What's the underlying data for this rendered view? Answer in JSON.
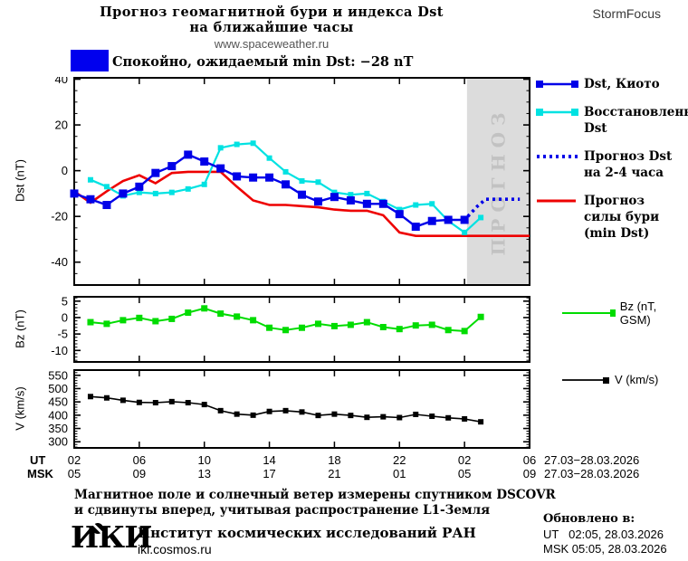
{
  "header": {
    "title_line1": "Прогноз геомагнитной бури и индекса Dst",
    "title_line2": "на ближайшие часы",
    "url": "www.spaceweather.ru",
    "brand": "StormFocus"
  },
  "status_banner": {
    "text": "Спокойно, ожидаемый min Dst: −28 nT",
    "swatch_color": "#0000ee"
  },
  "chart_data": [
    {
      "type": "line",
      "ylabel": "Dst (nT)",
      "x_axis_note": "hours UT, 27.03–28.03.2026",
      "xlim_hours": [
        2,
        30
      ],
      "x_major_ticks_hours": [
        2,
        6,
        10,
        14,
        18,
        22,
        26,
        30
      ],
      "ylim": [
        41,
        -50
      ],
      "yticks": [
        40,
        20,
        0,
        -20,
        -40
      ],
      "y_minor_step": 5,
      "forecast_region": {
        "start_hour": 26.15,
        "end_hour": 30,
        "label": "ПРОГНОЗ",
        "fill": "#dcdcdc",
        "label_color": "#c2c2c2"
      },
      "series": [
        {
          "name": "Прогноз силы бури (min Dst)",
          "color": "#ee0000",
          "marker": "none",
          "width": 2.6,
          "x": [
            2,
            3,
            4,
            5,
            6,
            7,
            8,
            9,
            10,
            11,
            12,
            13,
            14,
            15,
            16,
            17,
            18,
            19,
            20,
            21,
            22,
            23,
            24,
            25,
            26,
            27,
            28,
            29,
            30
          ],
          "y": [
            -9,
            -14,
            -9,
            -4.5,
            -2,
            -5.5,
            -1,
            -0.5,
            -0.5,
            -0.5,
            -7,
            -13,
            -15,
            -15,
            -15.5,
            -16,
            -17,
            -17.5,
            -17.5,
            -19.5,
            -27,
            -28.5,
            -28.5,
            -28.5,
            -28.5,
            -28.5,
            -28.5,
            -28.5,
            -28.5
          ]
        },
        {
          "name": "Восстановленный Dst",
          "color": "#00e2e2",
          "marker": "square",
          "marker_size": 6,
          "width": 2.2,
          "x": [
            3,
            4,
            5,
            6,
            7,
            8,
            9,
            10,
            11,
            12,
            13,
            14,
            15,
            16,
            17,
            18,
            19,
            20,
            21,
            22,
            23,
            24,
            25,
            26,
            27
          ],
          "y": [
            -4,
            -7,
            -11,
            -9.5,
            -10,
            -9.5,
            -8,
            -6,
            10,
            11.5,
            12,
            5.5,
            -0.5,
            -4.5,
            -5,
            -9.5,
            -10.5,
            -10,
            -13.5,
            -17,
            -15,
            -14.5,
            -22,
            -27,
            -20.5
          ]
        },
        {
          "name": "Dst, Киото",
          "color": "#0000e8",
          "marker": "square",
          "marker_size": 9,
          "width": 2.4,
          "x": [
            2,
            3,
            4,
            5,
            6,
            7,
            8,
            9,
            10,
            11,
            12,
            13,
            14,
            15,
            16,
            17,
            18,
            19,
            20,
            21,
            22,
            23,
            24,
            25,
            26
          ],
          "y": [
            -10,
            -12.5,
            -15,
            -10,
            -7,
            -1,
            2,
            7,
            4,
            1,
            -2.5,
            -3,
            -3,
            -6,
            -10.5,
            -13.5,
            -11.5,
            -13,
            -14.5,
            -14.5,
            -19,
            -24.5,
            -22,
            -21.5,
            -21.5
          ]
        },
        {
          "name": "Прогноз Dst на 2-4 часа",
          "color": "#0000e8",
          "marker": "none",
          "width": 3.6,
          "dashed": true,
          "x": [
            26.2,
            26.8,
            27.3,
            29.4
          ],
          "y": [
            -20,
            -15.5,
            -12.5,
            -12.5
          ]
        }
      ],
      "legend": [
        {
          "swatch": "line-squares",
          "color": "#0000e8",
          "label": "Dst, Киото"
        },
        {
          "swatch": "line-squares",
          "color": "#00e2e2",
          "label": "Восстановленный Dst"
        },
        {
          "swatch": "dotted-line",
          "color": "#0000e8",
          "label": "Прогноз Dst на 2-4 часа"
        },
        {
          "swatch": "line",
          "color": "#ee0000",
          "label": "Прогноз силы бури (min Dst)"
        }
      ]
    },
    {
      "type": "line",
      "ylabel": "Bz (nT)",
      "xlim_hours": [
        2,
        30
      ],
      "x_major_ticks_hours": [
        2,
        6,
        10,
        14,
        18,
        22,
        26,
        30
      ],
      "ylim": [
        6.6,
        -13.5
      ],
      "yticks": [
        5,
        0,
        -5,
        -10
      ],
      "y_minor_step": 1,
      "series": [
        {
          "name": "Bz (nT, GSM)",
          "color": "#00dc00",
          "marker": "square",
          "marker_size": 7,
          "width": 2,
          "x": [
            3,
            4,
            5,
            6,
            7,
            8,
            9,
            10,
            11,
            12,
            13,
            14,
            15,
            16,
            17,
            18,
            19,
            20,
            21,
            22,
            23,
            24,
            25,
            26,
            27
          ],
          "y": [
            -1.4,
            -1.9,
            -0.8,
            -0.1,
            -1.1,
            -0.4,
            1.5,
            2.8,
            1.2,
            0.3,
            -0.8,
            -3.1,
            -3.8,
            -3.1,
            -1.9,
            -2.6,
            -2.2,
            -1.4,
            -2.9,
            -3.5,
            -2.4,
            -2.2,
            -3.8,
            -4.1,
            0.2
          ]
        }
      ],
      "legend": [
        {
          "swatch": "line-square-end",
          "color": "#00dc00",
          "label": "Bz (nT, GSM)"
        }
      ]
    },
    {
      "type": "line",
      "ylabel": "V (km/s)",
      "xlim_hours": [
        2,
        30
      ],
      "x_major_ticks_hours": [
        2,
        6,
        10,
        14,
        18,
        22,
        26,
        30
      ],
      "ylim": [
        573,
        277
      ],
      "yticks": [
        550,
        500,
        450,
        400,
        350,
        300
      ],
      "y_minor_step": 10,
      "series": [
        {
          "name": "V (km/s)",
          "color": "#000000",
          "marker": "square",
          "marker_size": 6,
          "width": 1.6,
          "x": [
            3,
            4,
            5,
            6,
            7,
            8,
            9,
            10,
            11,
            12,
            13,
            14,
            15,
            16,
            17,
            18,
            19,
            20,
            21,
            22,
            23,
            24,
            25,
            26,
            27
          ],
          "y": [
            470,
            465,
            456,
            448,
            447,
            451,
            447,
            440,
            417,
            404,
            400,
            414,
            417,
            412,
            399,
            404,
            399,
            392,
            394,
            391,
            403,
            396,
            390,
            386,
            375
          ]
        }
      ],
      "legend": [
        {
          "swatch": "line-square-end",
          "color": "#000000",
          "label": "V (km/s)"
        }
      ]
    }
  ],
  "xaxis": {
    "ut_label": "UT",
    "msk_label": "MSK",
    "ut_ticks": [
      "02",
      "06",
      "10",
      "14",
      "18",
      "22",
      "02",
      "06"
    ],
    "msk_ticks": [
      "05",
      "09",
      "13",
      "17",
      "21",
      "01",
      "05",
      "09"
    ],
    "ut_daterange": "27.03−28.03.2026",
    "msk_daterange": "27.03−28.03.2026"
  },
  "footnote": {
    "line1": "Магнитное поле и солнечный ветер измерены спутником DSCOVR",
    "line2": "и сдвинуты вперед, учитывая распространение L1-Земля"
  },
  "footer": {
    "logo": "ИКИ",
    "institute": "Институт космических исследований РАН",
    "site": "iki.cosmos.ru",
    "updated_label": "Обновлено в:",
    "updated_ut": "UT   02:05, 28.03.2026",
    "updated_msk": "MSK 05:05, 28.03.2026"
  }
}
